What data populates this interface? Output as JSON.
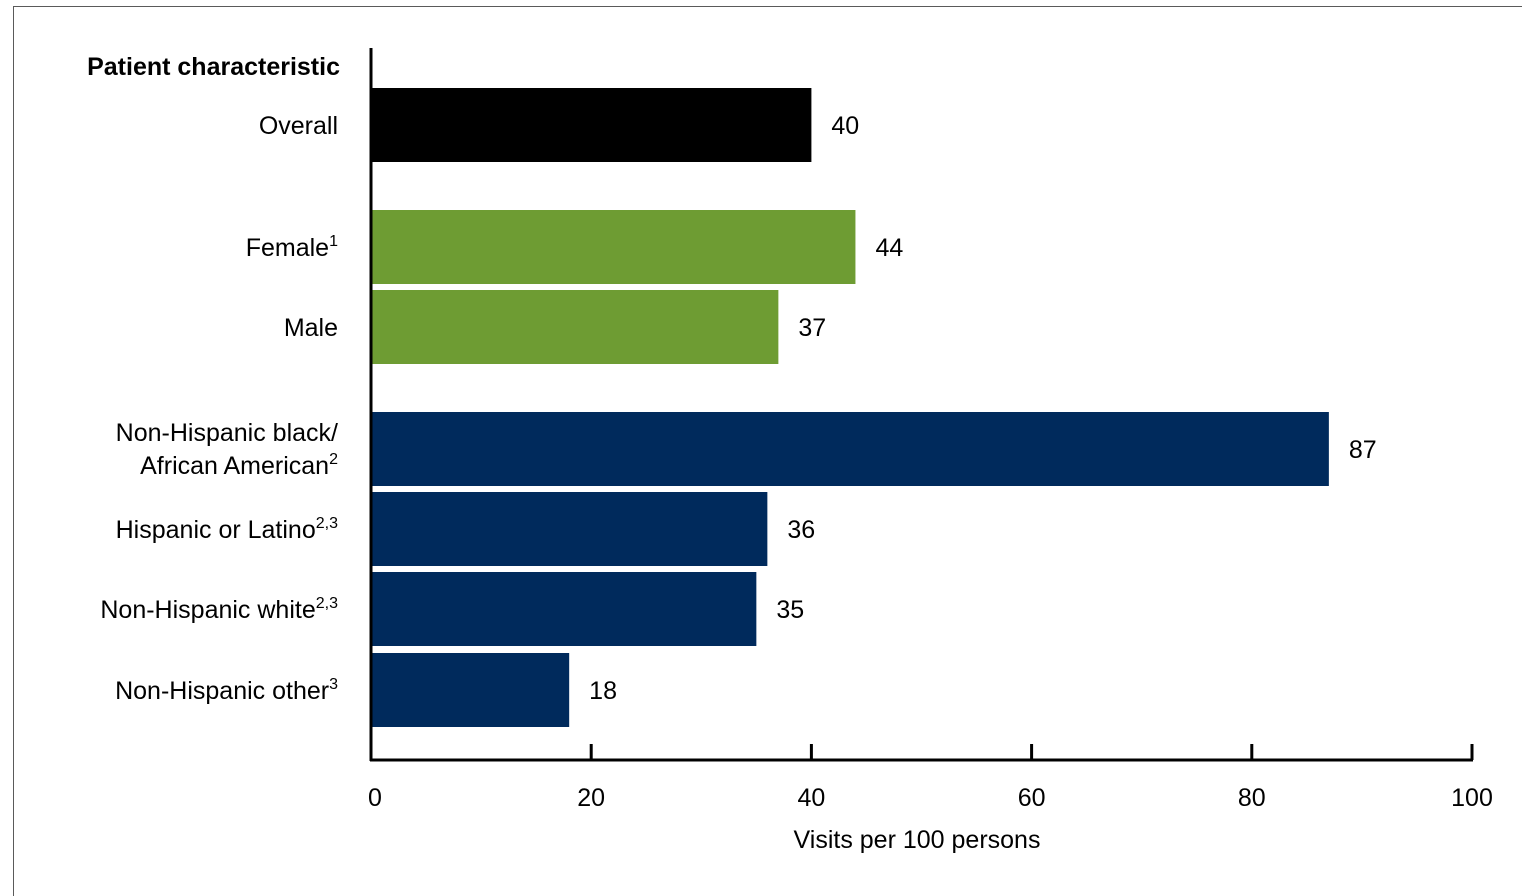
{
  "chart_data": {
    "type": "bar",
    "orientation": "horizontal",
    "category_header": "Patient characteristic",
    "xlabel": "Visits per 100 persons",
    "xlim": [
      0,
      100
    ],
    "xticks": [
      0,
      20,
      40,
      60,
      80,
      100
    ],
    "grid": false,
    "bars": [
      {
        "label": "Overall",
        "sup": "",
        "value": 40,
        "value_label": "40",
        "color": "#000000"
      },
      {
        "label": "Female",
        "sup": "1",
        "value": 44,
        "value_label": "44",
        "color": "#6e9c33"
      },
      {
        "label": "Male",
        "sup": "",
        "value": 37,
        "value_label": "37",
        "color": "#6e9c33"
      },
      {
        "label": "Non-Hispanic black/",
        "label2": "African American",
        "sup": "2",
        "value": 87,
        "value_label": "87",
        "color": "#002a5c"
      },
      {
        "label": "Hispanic or Latino",
        "sup": "2,3",
        "value": 36,
        "value_label": "36",
        "color": "#002a5c"
      },
      {
        "label": "Non-Hispanic white",
        "sup": "2,3",
        "value": 35,
        "value_label": "35",
        "color": "#002a5c"
      },
      {
        "label": "Non-Hispanic other",
        "sup": "3",
        "value": 18,
        "value_label": "18",
        "color": "#002a5c"
      }
    ]
  }
}
